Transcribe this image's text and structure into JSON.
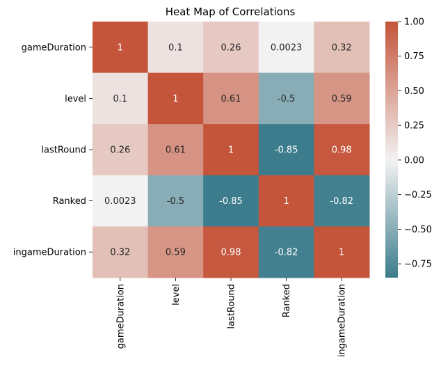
{
  "chart_data": {
    "type": "heatmap",
    "title": "Heat Map of Correlations",
    "xlabel": "",
    "ylabel": "",
    "x_categories": [
      "gameDuration",
      "level",
      "lastRound",
      "Ranked",
      "ingameDuration"
    ],
    "y_categories": [
      "gameDuration",
      "level",
      "lastRound",
      "Ranked",
      "ingameDuration"
    ],
    "values": [
      [
        1,
        0.1,
        0.26,
        0.0023,
        0.32
      ],
      [
        0.1,
        1,
        0.61,
        -0.5,
        0.59
      ],
      [
        0.26,
        0.61,
        1,
        -0.85,
        0.98
      ],
      [
        0.0023,
        -0.5,
        -0.85,
        1,
        -0.82
      ],
      [
        0.32,
        0.59,
        0.98,
        -0.82,
        1
      ]
    ],
    "cell_labels": [
      [
        "1",
        "0.1",
        "0.26",
        "0.0023",
        "0.32"
      ],
      [
        "0.1",
        "1",
        "0.61",
        "-0.5",
        "0.59"
      ],
      [
        "0.26",
        "0.61",
        "1",
        "-0.85",
        "0.98"
      ],
      [
        "0.0023",
        "-0.5",
        "-0.85",
        "1",
        "-0.82"
      ],
      [
        "0.32",
        "0.59",
        "0.98",
        "-0.82",
        "1"
      ]
    ],
    "colorbar": {
      "range": [
        -0.85,
        1.0
      ],
      "ticks": [
        1.0,
        0.75,
        0.5,
        0.25,
        0.0,
        -0.25,
        -0.5,
        -0.75
      ],
      "tick_labels": [
        "1.00",
        "0.75",
        "0.50",
        "0.25",
        "0.00",
        "−0.25",
        "−0.50",
        "−0.75"
      ]
    },
    "colormap": {
      "negative": "#3d7c8c",
      "center": "#f2f2f2",
      "positive": "#c4553a"
    },
    "grid": false,
    "legend": "colorbar-right"
  }
}
